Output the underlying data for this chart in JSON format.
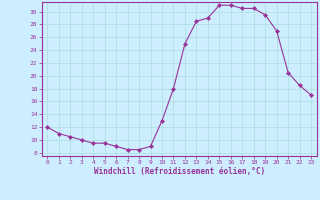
{
  "x": [
    0,
    1,
    2,
    3,
    4,
    5,
    6,
    7,
    8,
    9,
    10,
    11,
    12,
    13,
    14,
    15,
    16,
    17,
    18,
    19,
    20,
    21,
    22,
    23
  ],
  "y": [
    12,
    11,
    10.5,
    10,
    9.5,
    9.5,
    9,
    8.5,
    8.5,
    9,
    13,
    18,
    25,
    28.5,
    29,
    31,
    31,
    30.5,
    30.5,
    29.5,
    27,
    20.5,
    18.5,
    17
  ],
  "line_color": "#993399",
  "marker": "D",
  "marker_size": 2.0,
  "bg_color": "#cceeff",
  "grid_color": "#aadddd",
  "xlabel": "Windchill (Refroidissement éolien,°C)",
  "xlabel_color": "#993399",
  "xlim": [
    -0.5,
    23.5
  ],
  "ylim": [
    7.5,
    31.5
  ],
  "yticks": [
    8,
    10,
    12,
    14,
    16,
    18,
    20,
    22,
    24,
    26,
    28,
    30
  ],
  "xticks": [
    0,
    1,
    2,
    3,
    4,
    5,
    6,
    7,
    8,
    9,
    10,
    11,
    12,
    13,
    14,
    15,
    16,
    17,
    18,
    19,
    20,
    21,
    22,
    23
  ],
  "tick_color": "#993399",
  "spine_color": "#993399",
  "tick_fontsize": 4.5,
  "xlabel_fontsize": 5.5
}
